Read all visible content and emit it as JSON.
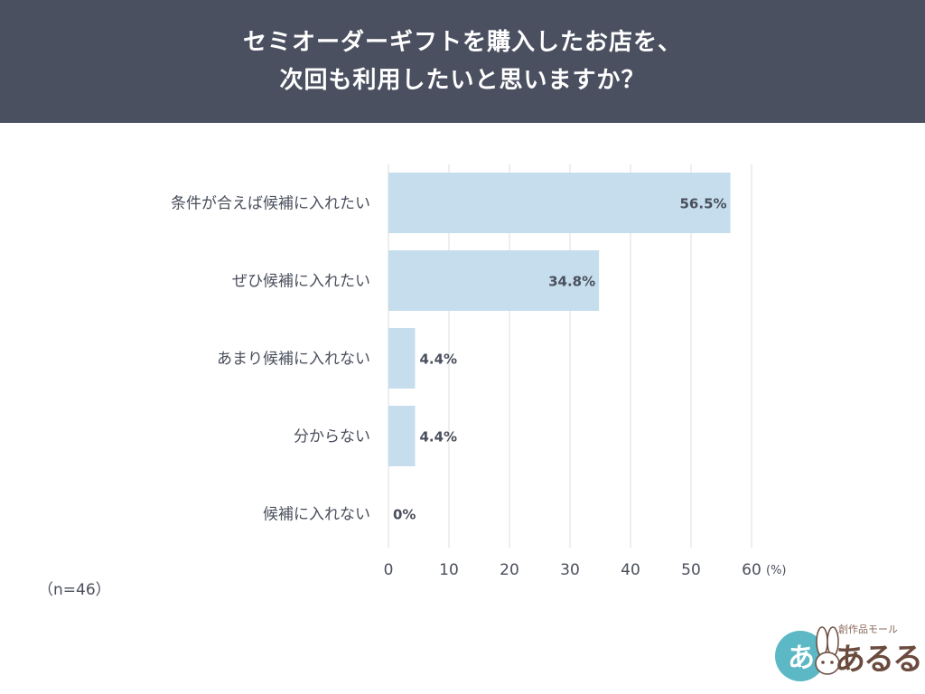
{
  "header": {
    "title_line1": "セミオーダーギフトを購入したお店を、",
    "title_line2": "次回も利用したいと思いますか？"
  },
  "sample_size": "（n=46）",
  "logo": {
    "small_text": "創作品モール",
    "main_text": "あるる",
    "badge_text": "あ",
    "accent_color": "#5bb8c4",
    "brand_color": "#6b4b3e",
    "icon": "rabbit-icon"
  },
  "chart_data": {
    "type": "bar",
    "orientation": "horizontal",
    "categories": [
      "条件が合えば候補に入れたい",
      "ぜひ候補に入れたい",
      "あまり候補に入れない",
      "分からない",
      "候補に入れない"
    ],
    "values": [
      56.5,
      34.8,
      4.4,
      4.4,
      0
    ],
    "data_labels": [
      "56.5%",
      "34.8%",
      "4.4%",
      "4.4%",
      "0%"
    ],
    "xlim": [
      0,
      60
    ],
    "xticks": [
      0,
      10,
      20,
      30,
      40,
      50,
      60
    ],
    "xunit": "(%)",
    "grid": true,
    "bar_color": "#c5ddec",
    "grid_color": "#dcdcdc"
  }
}
